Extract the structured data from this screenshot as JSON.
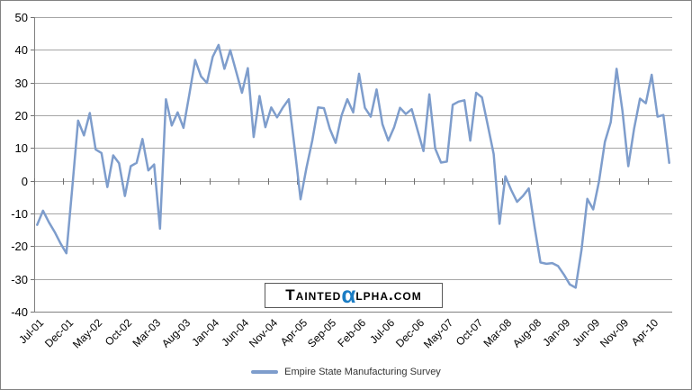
{
  "chart_data": {
    "type": "line",
    "title": "",
    "xlabel": "",
    "ylabel": "",
    "grid": true,
    "legend_position": "bottom-center",
    "ylim": [
      -40,
      50
    ],
    "ytick_step": 10,
    "ytick_labels": [
      "50",
      "40",
      "30",
      "20",
      "10",
      "0",
      "-10",
      "-20",
      "-30",
      "-40"
    ],
    "x_tick_interval": 5,
    "x_tick_labels": [
      "Jul-01",
      "Dec-01",
      "May-02",
      "Oct-02",
      "Mar-03",
      "Aug-03",
      "Jan-04",
      "Jun-04",
      "Nov-04",
      "Apr-05",
      "Sep-05",
      "Feb-06",
      "Jul-06",
      "Dec-06",
      "May-07",
      "Oct-07",
      "Mar-08",
      "Aug-08",
      "Jan-09",
      "Jun-09",
      "Nov-09",
      "Apr-10"
    ],
    "x_start": "Jul-01",
    "x_end": "Jul-10",
    "series": [
      {
        "name": "Empire State Manufacturing Survey",
        "color": "#7E9DCC",
        "values": [
          -13.3,
          -9.0,
          -12.5,
          -15.5,
          -19.0,
          -22.0,
          -2.0,
          18.5,
          14.0,
          20.8,
          9.7,
          8.6,
          -1.8,
          7.9,
          5.5,
          -4.5,
          4.6,
          5.6,
          12.9,
          3.3,
          5.1,
          -14.5,
          25.0,
          17.0,
          21.0,
          16.3,
          26.5,
          37.0,
          32.0,
          30.0,
          38.0,
          41.6,
          34.3,
          40.0,
          33.5,
          27.0,
          34.5,
          13.5,
          26.0,
          16.5,
          22.5,
          19.5,
          22.5,
          25.0,
          10.0,
          -5.5,
          4.0,
          12.4,
          22.5,
          22.3,
          16.0,
          11.7,
          20.0,
          25.0,
          21.0,
          32.8,
          22.4,
          19.7,
          28.0,
          17.4,
          12.4,
          16.5,
          22.4,
          20.5,
          22.0,
          15.5,
          9.2,
          26.5,
          10.0,
          5.7,
          6.0,
          23.3,
          24.3,
          24.7,
          12.4,
          27.0,
          25.6,
          17.0,
          8.3,
          -13.0,
          1.5,
          -2.7,
          -6.3,
          -4.5,
          -2.2,
          -14.0,
          -24.8,
          -25.2,
          -25.0,
          -25.9,
          -28.5,
          -31.5,
          -32.5,
          -21.0,
          -5.4,
          -8.6,
          0.0,
          12.0,
          18.0,
          34.3,
          21.5,
          4.6,
          16.1,
          25.2,
          23.8,
          32.5,
          19.7,
          20.2,
          5.6
        ]
      }
    ]
  },
  "legend": {
    "label": "Empire State Manufacturing Survey"
  },
  "watermark": {
    "part1": "Tainted",
    "alpha": "α",
    "part2": "lpha.com",
    "alpha_color": "#1B7DC4"
  },
  "colors": {
    "line": "#7E9DCC",
    "gridline": "#a6a6a6",
    "axis": "#808080",
    "alpha_blue": "#1B7DC4"
  }
}
